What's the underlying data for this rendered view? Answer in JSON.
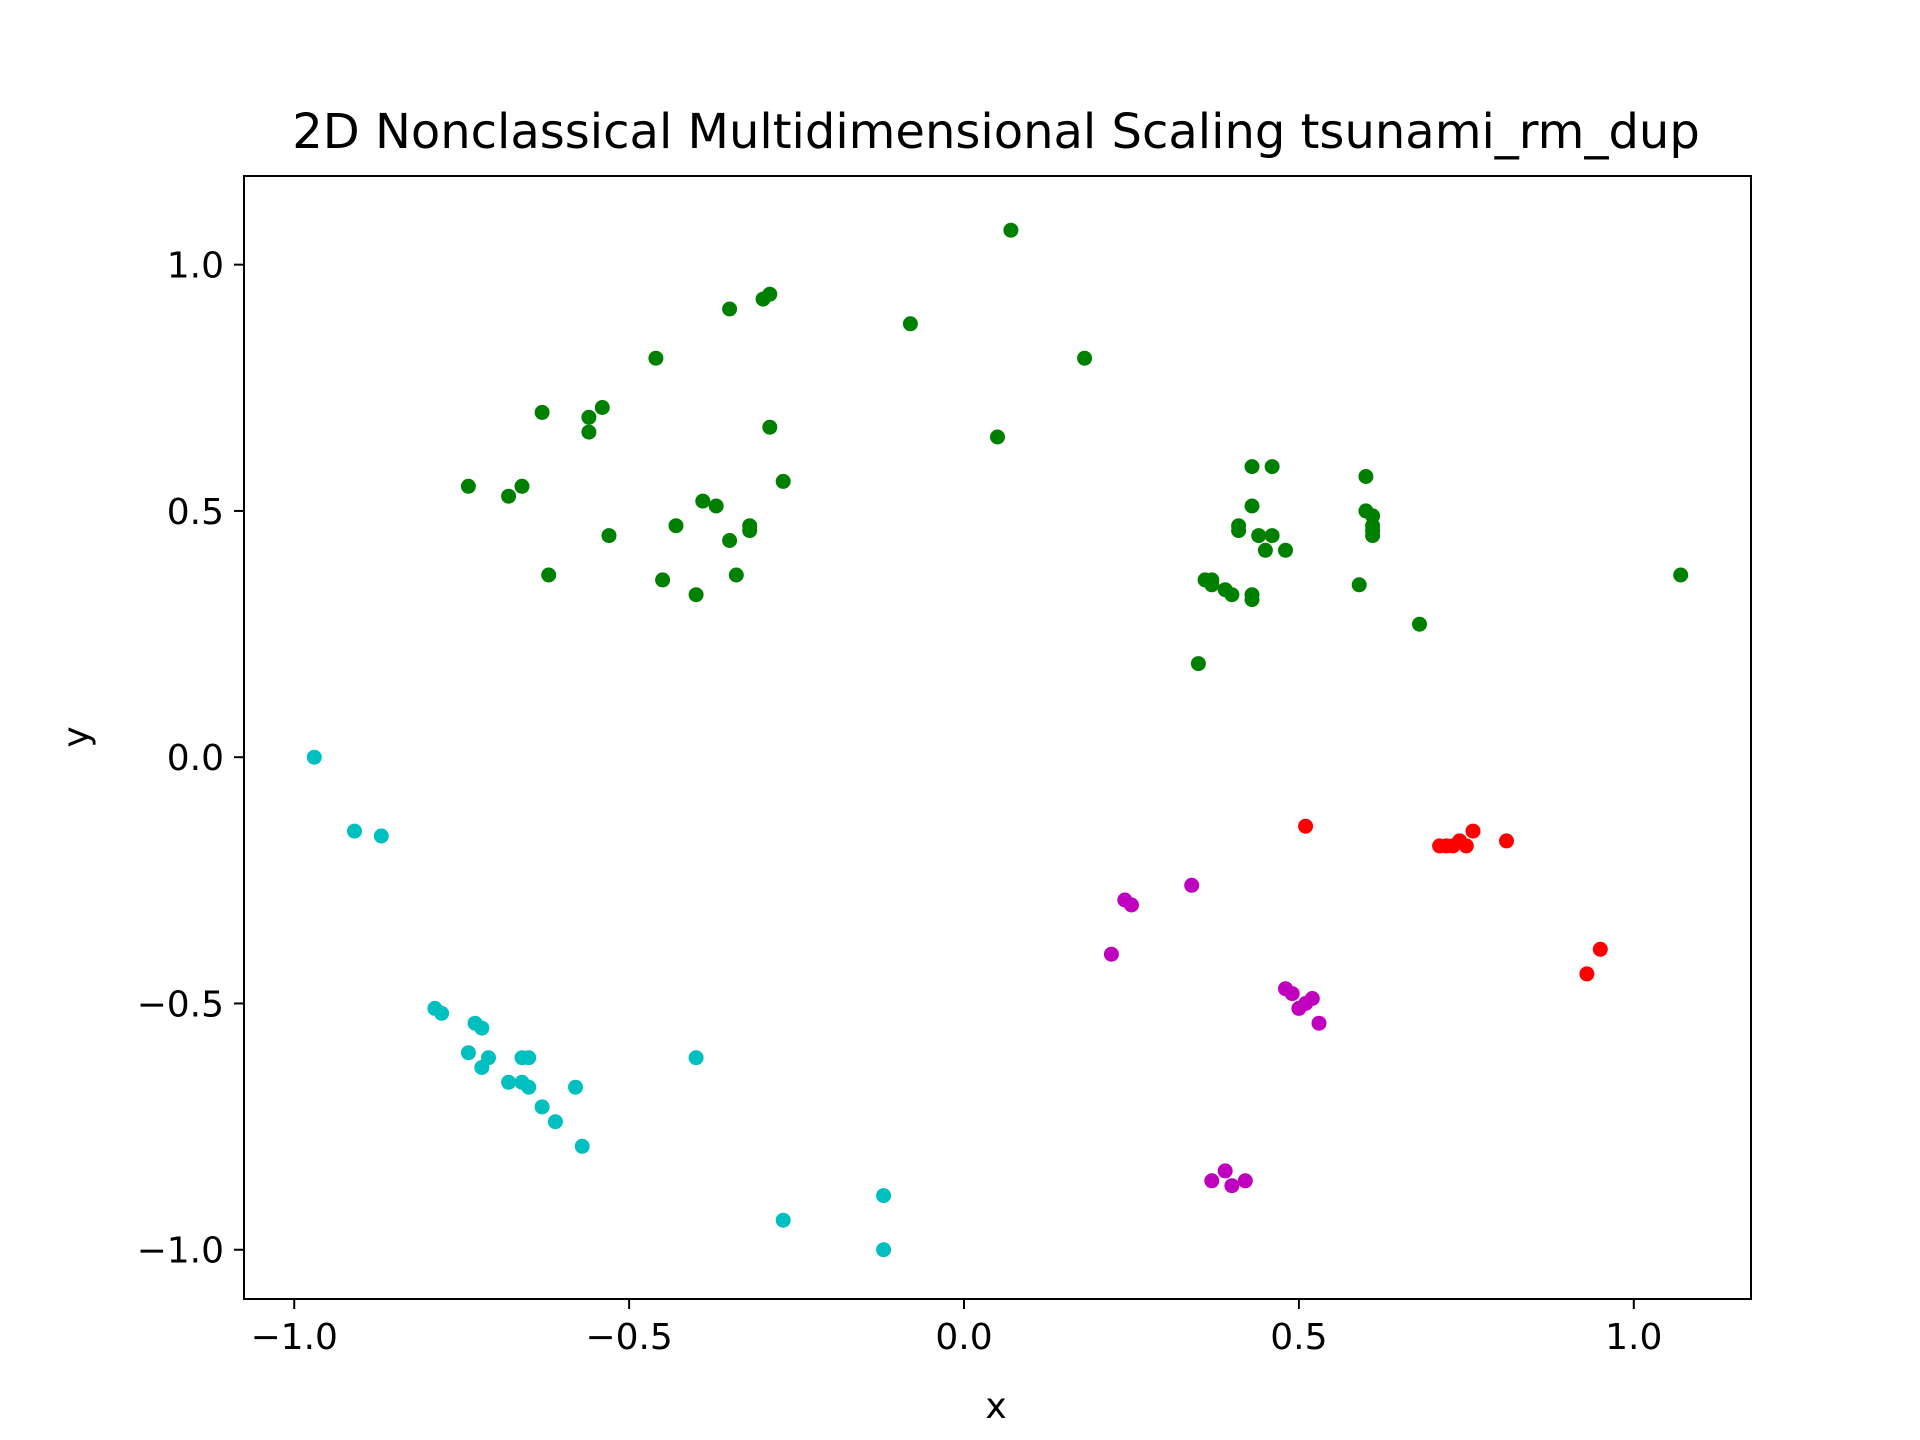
{
  "chart_data": {
    "type": "scatter",
    "title": "2D Nonclassical Multidimensional Scaling tsunami_rm_dup",
    "xlabel": "x",
    "ylabel": "y",
    "xlim": [
      -1.075,
      1.175
    ],
    "ylim": [
      -1.1,
      1.18
    ],
    "xticks": [
      -1.0,
      -0.5,
      0.0,
      0.5,
      1.0
    ],
    "xtick_labels": [
      "−1.0",
      "−0.5",
      "0.0",
      "0.5",
      "1.0"
    ],
    "yticks": [
      -1.0,
      -0.5,
      0.0,
      0.5,
      1.0
    ],
    "ytick_labels": [
      "−1.0",
      "−0.5",
      "0.0",
      "0.5",
      "1.0"
    ],
    "grid": false,
    "legend": "none",
    "series": [
      {
        "color": "#008000",
        "points": [
          [
            0.07,
            1.07
          ],
          [
            -0.08,
            0.88
          ],
          [
            0.18,
            0.81
          ],
          [
            -0.35,
            0.91
          ],
          [
            -0.3,
            0.93
          ],
          [
            -0.29,
            0.94
          ],
          [
            -0.46,
            0.81
          ],
          [
            -0.63,
            0.7
          ],
          [
            -0.56,
            0.69
          ],
          [
            -0.54,
            0.71
          ],
          [
            -0.56,
            0.66
          ],
          [
            -0.29,
            0.67
          ],
          [
            0.05,
            0.65
          ],
          [
            -0.27,
            0.56
          ],
          [
            -0.74,
            0.55
          ],
          [
            -0.66,
            0.55
          ],
          [
            -0.68,
            0.53
          ],
          [
            -0.39,
            0.52
          ],
          [
            -0.37,
            0.51
          ],
          [
            -0.43,
            0.47
          ],
          [
            -0.32,
            0.47
          ],
          [
            -0.32,
            0.46
          ],
          [
            -0.53,
            0.45
          ],
          [
            -0.35,
            0.44
          ],
          [
            -0.62,
            0.37
          ],
          [
            -0.45,
            0.36
          ],
          [
            -0.34,
            0.37
          ],
          [
            -0.4,
            0.33
          ],
          [
            0.43,
            0.59
          ],
          [
            0.46,
            0.59
          ],
          [
            0.6,
            0.57
          ],
          [
            0.43,
            0.51
          ],
          [
            0.6,
            0.5
          ],
          [
            0.61,
            0.49
          ],
          [
            0.61,
            0.47
          ],
          [
            0.41,
            0.47
          ],
          [
            0.41,
            0.46
          ],
          [
            0.44,
            0.45
          ],
          [
            0.46,
            0.45
          ],
          [
            0.61,
            0.46
          ],
          [
            0.61,
            0.45
          ],
          [
            0.45,
            0.42
          ],
          [
            0.48,
            0.42
          ],
          [
            0.36,
            0.36
          ],
          [
            0.37,
            0.36
          ],
          [
            0.37,
            0.35
          ],
          [
            0.39,
            0.34
          ],
          [
            0.4,
            0.33
          ],
          [
            0.43,
            0.32
          ],
          [
            0.43,
            0.33
          ],
          [
            0.59,
            0.35
          ],
          [
            0.68,
            0.27
          ],
          [
            0.35,
            0.19
          ],
          [
            1.07,
            0.37
          ]
        ]
      },
      {
        "color": "#00bfbf",
        "points": [
          [
            -0.97,
            0.0
          ],
          [
            -0.91,
            -0.15
          ],
          [
            -0.87,
            -0.16
          ],
          [
            -0.79,
            -0.51
          ],
          [
            -0.78,
            -0.52
          ],
          [
            -0.73,
            -0.54
          ],
          [
            -0.72,
            -0.55
          ],
          [
            -0.74,
            -0.6
          ],
          [
            -0.71,
            -0.61
          ],
          [
            -0.72,
            -0.63
          ],
          [
            -0.66,
            -0.61
          ],
          [
            -0.65,
            -0.61
          ],
          [
            -0.68,
            -0.66
          ],
          [
            -0.66,
            -0.66
          ],
          [
            -0.65,
            -0.67
          ],
          [
            -0.63,
            -0.71
          ],
          [
            -0.61,
            -0.74
          ],
          [
            -0.58,
            -0.67
          ],
          [
            -0.57,
            -0.79
          ],
          [
            -0.4,
            -0.61
          ],
          [
            -0.27,
            -0.94
          ],
          [
            -0.12,
            -0.89
          ],
          [
            -0.12,
            -1.0
          ]
        ]
      },
      {
        "color": "#ff0000",
        "points": [
          [
            0.51,
            -0.14
          ],
          [
            0.71,
            -0.18
          ],
          [
            0.72,
            -0.18
          ],
          [
            0.73,
            -0.18
          ],
          [
            0.74,
            -0.17
          ],
          [
            0.75,
            -0.18
          ],
          [
            0.76,
            -0.15
          ],
          [
            0.81,
            -0.17
          ],
          [
            0.95,
            -0.39
          ],
          [
            0.93,
            -0.44
          ]
        ]
      },
      {
        "color": "#bf00bf",
        "points": [
          [
            0.34,
            -0.26
          ],
          [
            0.24,
            -0.29
          ],
          [
            0.25,
            -0.3
          ],
          [
            0.22,
            -0.4
          ],
          [
            0.48,
            -0.47
          ],
          [
            0.49,
            -0.48
          ],
          [
            0.52,
            -0.49
          ],
          [
            0.51,
            -0.5
          ],
          [
            0.5,
            -0.51
          ],
          [
            0.53,
            -0.54
          ],
          [
            0.37,
            -0.86
          ],
          [
            0.39,
            -0.84
          ],
          [
            0.4,
            -0.87
          ],
          [
            0.42,
            -0.86
          ]
        ]
      }
    ]
  }
}
